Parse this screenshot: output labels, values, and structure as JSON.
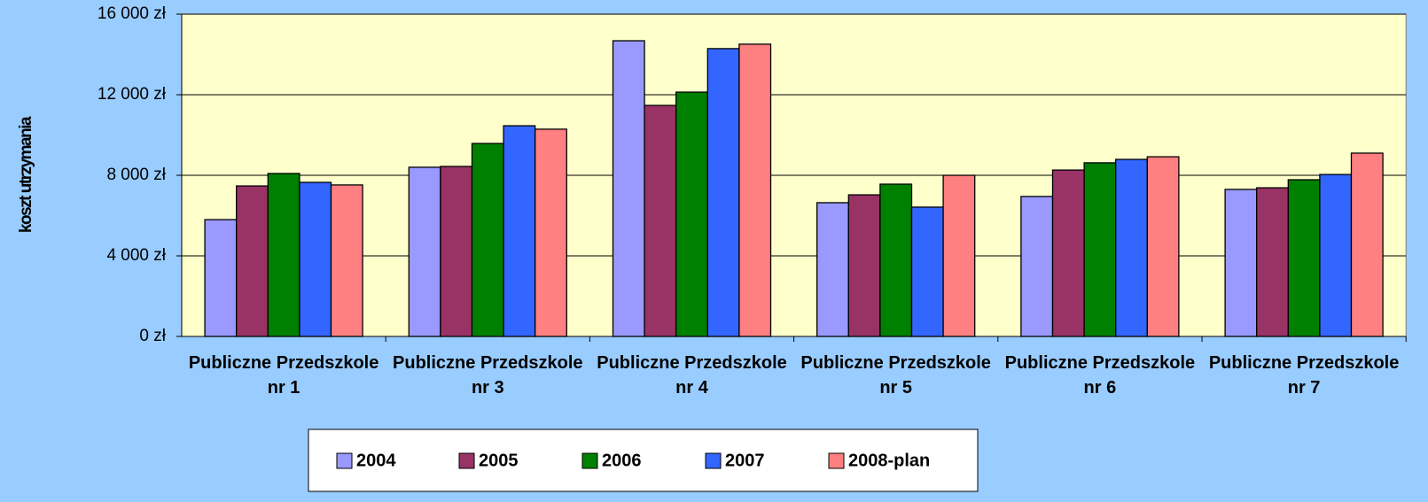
{
  "chart_data": {
    "type": "bar",
    "y_label": "koszt utrzymania",
    "categories": [
      "Publiczne Przedszkole nr 1",
      "Publiczne Przedszkole nr 3",
      "Publiczne Przedszkole nr 4",
      "Publiczne Przedszkole nr 5",
      "Publiczne Przedszkole nr 6",
      "Publiczne Przedszkole nr 7"
    ],
    "series": [
      {
        "name": "2004",
        "color": "#9999ff",
        "values": [
          5800,
          8400,
          14680,
          6640,
          6950,
          7300
        ]
      },
      {
        "name": "2005",
        "color": "#993366",
        "values": [
          7470,
          8440,
          11470,
          7030,
          8260,
          7380
        ]
      },
      {
        "name": "2006",
        "color": "#008000",
        "values": [
          8090,
          9580,
          12130,
          7560,
          8620,
          7780
        ]
      },
      {
        "name": "2007",
        "color": "#3366ff",
        "values": [
          7650,
          10460,
          14290,
          6420,
          8790,
          8040
        ]
      },
      {
        "name": "2008-plan",
        "color": "#ff8080",
        "values": [
          7520,
          10290,
          14510,
          8000,
          8920,
          9100
        ]
      }
    ],
    "ylim": [
      0,
      16000
    ],
    "yticks": [
      {
        "value": 0,
        "label": "0 zł"
      },
      {
        "value": 4000,
        "label": "4 000 zł"
      },
      {
        "value": 8000,
        "label": "8 000 zł"
      },
      {
        "value": 12000,
        "label": "12 000 zł"
      },
      {
        "value": 16000,
        "label": "16 000 zł"
      }
    ],
    "grid": true,
    "legend": "bottom"
  }
}
